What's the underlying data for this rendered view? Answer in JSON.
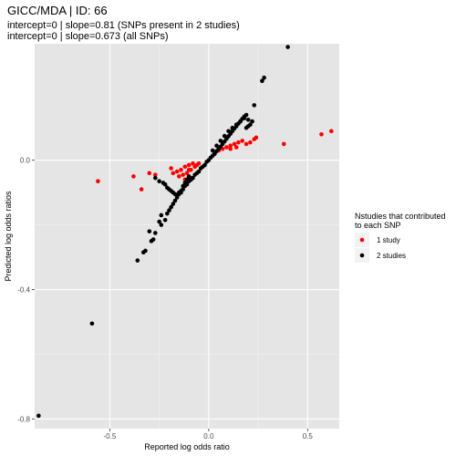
{
  "chart_data": {
    "type": "scatter",
    "title": "GICC/MDA | ID: 66",
    "subtitle_lines": [
      "intercept=0 | slope=0.81 (SNPs present in 2 studies)",
      "intercept=0 | slope=0.673 (all SNPs)"
    ],
    "xlabel": "Reported log odds ratio",
    "ylabel": "Predicted log odds ratios",
    "xlim": [
      -0.88,
      0.66
    ],
    "ylim": [
      -0.83,
      0.36
    ],
    "x_ticks": [
      -0.5,
      0.0,
      0.5
    ],
    "x_tick_labels": [
      "-0.5",
      "0.0",
      "0.5"
    ],
    "y_ticks": [
      -0.8,
      -0.4,
      0.0
    ],
    "y_tick_labels": [
      "-0.8",
      "-0.4",
      "0.0"
    ],
    "grid": true,
    "background": "#e5e5e5",
    "legend": {
      "placement": "right",
      "title_lines": [
        "Nstudies that contributed",
        "to each SNP"
      ],
      "entries": [
        {
          "label": "1 study",
          "color": "#ff0000"
        },
        {
          "label": "2 studies",
          "color": "#000000"
        }
      ]
    },
    "series": [
      {
        "name": "1 study",
        "color": "#ff0000",
        "points": [
          [
            -0.56,
            -0.065
          ],
          [
            -0.38,
            -0.05
          ],
          [
            -0.34,
            -0.09
          ],
          [
            -0.3,
            -0.04
          ],
          [
            -0.27,
            -0.045
          ],
          [
            -0.19,
            -0.025
          ],
          [
            -0.18,
            -0.04
          ],
          [
            -0.16,
            -0.035
          ],
          [
            -0.15,
            -0.05
          ],
          [
            -0.14,
            -0.03
          ],
          [
            -0.13,
            -0.045
          ],
          [
            -0.12,
            -0.02
          ],
          [
            -0.11,
            -0.04
          ],
          [
            -0.1,
            -0.015
          ],
          [
            -0.09,
            -0.03
          ],
          [
            -0.08,
            -0.01
          ],
          [
            -0.07,
            -0.02
          ],
          [
            -0.06,
            -0.015
          ],
          [
            -0.12,
            -0.06
          ],
          [
            -0.09,
            -0.055
          ],
          [
            -0.1,
            -0.03
          ],
          [
            -0.05,
            -0.01
          ],
          [
            0.03,
            0.02
          ],
          [
            0.05,
            0.03
          ],
          [
            0.07,
            0.035
          ],
          [
            0.09,
            0.04
          ],
          [
            0.11,
            0.045
          ],
          [
            0.13,
            0.05
          ],
          [
            0.15,
            0.055
          ],
          [
            0.17,
            0.06
          ],
          [
            0.19,
            0.05
          ],
          [
            0.21,
            0.055
          ],
          [
            0.23,
            0.065
          ],
          [
            0.24,
            0.07
          ],
          [
            0.11,
            0.035
          ],
          [
            0.14,
            0.04
          ],
          [
            0.38,
            0.05
          ],
          [
            0.57,
            0.08
          ],
          [
            0.62,
            0.09
          ]
        ]
      },
      {
        "name": "2 studies",
        "color": "#000000",
        "points": [
          [
            -0.86,
            -0.79
          ],
          [
            -0.59,
            -0.505
          ],
          [
            -0.36,
            -0.31
          ],
          [
            -0.33,
            -0.285
          ],
          [
            -0.32,
            -0.28
          ],
          [
            -0.29,
            -0.25
          ],
          [
            -0.28,
            -0.245
          ],
          [
            -0.27,
            -0.225
          ],
          [
            -0.24,
            -0.2
          ],
          [
            -0.22,
            -0.185
          ],
          [
            -0.24,
            -0.17
          ],
          [
            -0.21,
            -0.165
          ],
          [
            -0.2,
            -0.155
          ],
          [
            -0.19,
            -0.145
          ],
          [
            -0.18,
            -0.135
          ],
          [
            -0.17,
            -0.125
          ],
          [
            -0.16,
            -0.115
          ],
          [
            -0.15,
            -0.105
          ],
          [
            -0.14,
            -0.1
          ],
          [
            -0.13,
            -0.09
          ],
          [
            -0.12,
            -0.08
          ],
          [
            -0.11,
            -0.075
          ],
          [
            -0.1,
            -0.065
          ],
          [
            -0.09,
            -0.06
          ],
          [
            -0.08,
            -0.055
          ],
          [
            -0.07,
            -0.045
          ],
          [
            -0.06,
            -0.04
          ],
          [
            -0.05,
            -0.035
          ],
          [
            -0.04,
            -0.025
          ],
          [
            -0.03,
            -0.02
          ],
          [
            -0.02,
            -0.015
          ],
          [
            -0.01,
            -0.005
          ],
          [
            0.0,
            0.0
          ],
          [
            0.01,
            0.008
          ],
          [
            0.02,
            0.014
          ],
          [
            0.03,
            0.02
          ],
          [
            0.04,
            0.028
          ],
          [
            0.05,
            0.035
          ],
          [
            0.06,
            0.042
          ],
          [
            0.07,
            0.05
          ],
          [
            0.08,
            0.058
          ],
          [
            0.09,
            0.066
          ],
          [
            0.1,
            0.074
          ],
          [
            0.11,
            0.082
          ],
          [
            0.12,
            0.09
          ],
          [
            0.13,
            0.098
          ],
          [
            0.14,
            0.105
          ],
          [
            0.15,
            0.113
          ],
          [
            0.16,
            0.12
          ],
          [
            0.17,
            0.128
          ],
          [
            0.18,
            0.135
          ],
          [
            0.19,
            0.14
          ],
          [
            0.2,
            0.125
          ],
          [
            0.2,
            0.105
          ],
          [
            0.19,
            0.1
          ],
          [
            0.21,
            0.11
          ],
          [
            0.22,
            0.12
          ],
          [
            0.28,
            0.255
          ],
          [
            0.27,
            0.245
          ],
          [
            0.4,
            0.35
          ],
          [
            -0.27,
            -0.055
          ],
          [
            -0.25,
            -0.065
          ],
          [
            -0.23,
            -0.07
          ],
          [
            -0.22,
            -0.075
          ],
          [
            -0.21,
            -0.085
          ],
          [
            -0.2,
            -0.09
          ],
          [
            -0.19,
            -0.095
          ],
          [
            -0.18,
            -0.1
          ],
          [
            -0.17,
            -0.105
          ],
          [
            -0.16,
            -0.11
          ],
          [
            -0.15,
            -0.1
          ],
          [
            -0.14,
            -0.095
          ],
          [
            -0.13,
            -0.08
          ],
          [
            -0.12,
            -0.07
          ],
          [
            -0.11,
            -0.06
          ],
          [
            -0.1,
            -0.05
          ],
          [
            0.02,
            0.03
          ],
          [
            0.04,
            0.045
          ],
          [
            0.06,
            0.06
          ],
          [
            0.08,
            0.075
          ],
          [
            0.1,
            0.09
          ],
          [
            0.12,
            0.1
          ],
          [
            0.14,
            0.11
          ],
          [
            0.16,
            0.12
          ],
          [
            0.18,
            0.13
          ],
          [
            -0.3,
            -0.22
          ],
          [
            -0.25,
            -0.19
          ],
          [
            0.23,
            0.17
          ]
        ]
      }
    ]
  }
}
